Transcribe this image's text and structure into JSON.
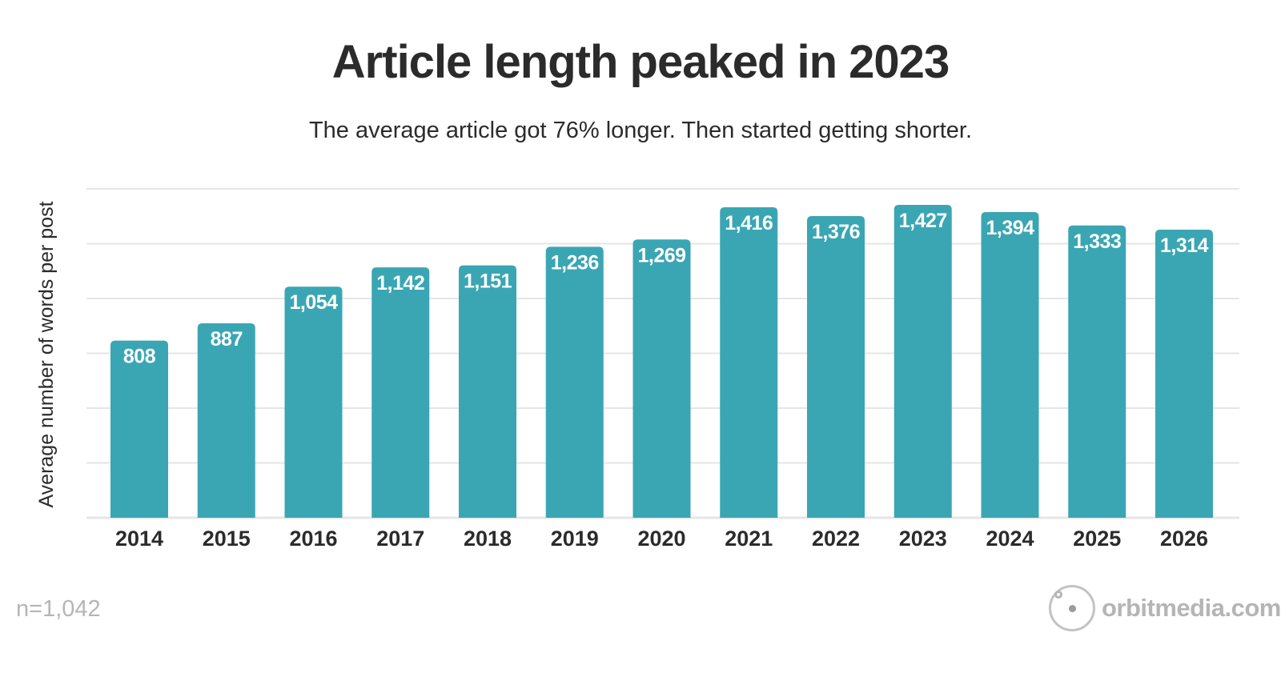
{
  "chart_data": {
    "type": "bar",
    "title": "Article length peaked in 2023",
    "subtitle": "The average article got 76% longer. Then started getting shorter.",
    "ylabel": "Average number of words per post",
    "xlabel": "",
    "categories": [
      "2014",
      "2015",
      "2016",
      "2017",
      "2018",
      "2019",
      "2020",
      "2021",
      "2022",
      "2023",
      "2024",
      "2025",
      "2026"
    ],
    "values": [
      808,
      887,
      1054,
      1142,
      1151,
      1236,
      1269,
      1416,
      1376,
      1427,
      1394,
      1333,
      1314
    ],
    "value_labels": [
      "808",
      "887",
      "1,054",
      "1,142",
      "1,151",
      "1,236",
      "1,269",
      "1,416",
      "1,376",
      "1,427",
      "1,394",
      "1,333",
      "1,314"
    ],
    "ylim": [
      0,
      1500
    ],
    "y_gridline_step": 250,
    "y_tick_labels_shown": false,
    "grid": true,
    "legend": "none",
    "bar_color": "#3aa6b3",
    "data_label_color": "#ffffff",
    "gridline_color": "#e6e6e6"
  },
  "footer": {
    "sample_size": "n=1,042",
    "brand_text": "orbitmedia.com",
    "brand_icon": "orbit-logo-icon"
  }
}
